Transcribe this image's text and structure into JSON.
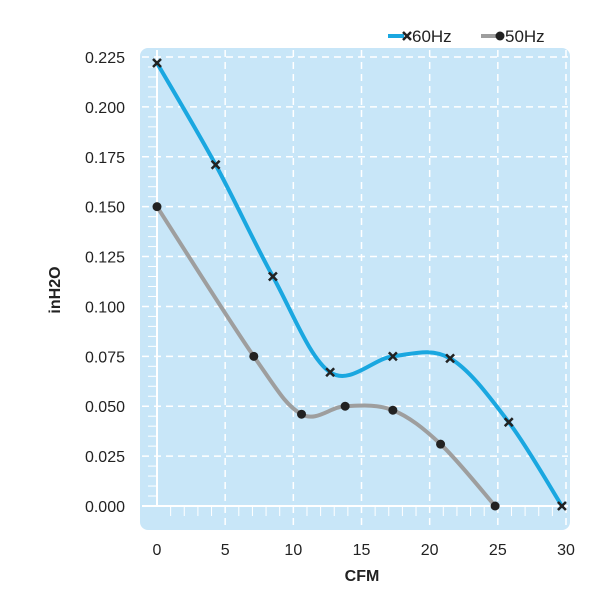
{
  "chart_data": {
    "type": "line",
    "title": "",
    "xlabel": "CFM",
    "ylabel": "inH2O",
    "xlim": [
      0,
      30
    ],
    "ylim": [
      0,
      0.225
    ],
    "x_ticks": [
      "0",
      "5",
      "10",
      "15",
      "20",
      "25",
      "30"
    ],
    "y_ticks": [
      "0.000",
      "0.025",
      "0.050",
      "0.075",
      "0.100",
      "0.125",
      "0.150",
      "0.175",
      "0.200",
      "0.225"
    ],
    "grid": true,
    "legend_position": "top-right",
    "background_color": "#c8e6f8",
    "series": [
      {
        "name": "60Hz",
        "color": "#1aa7e0",
        "marker": "x",
        "points": [
          [
            0,
            0.222
          ],
          [
            4.3,
            0.171
          ],
          [
            8.5,
            0.115
          ],
          [
            12.7,
            0.067
          ],
          [
            17.3,
            0.075
          ],
          [
            21.5,
            0.074
          ],
          [
            25.8,
            0.042
          ],
          [
            29.7,
            0.0
          ]
        ]
      },
      {
        "name": "50Hz",
        "color": "#9e9e9e",
        "marker": "circle",
        "points": [
          [
            0,
            0.15
          ],
          [
            7.1,
            0.075
          ],
          [
            10.6,
            0.046
          ],
          [
            13.8,
            0.05
          ],
          [
            17.3,
            0.048
          ],
          [
            20.8,
            0.031
          ],
          [
            24.8,
            0.0
          ]
        ]
      }
    ]
  }
}
